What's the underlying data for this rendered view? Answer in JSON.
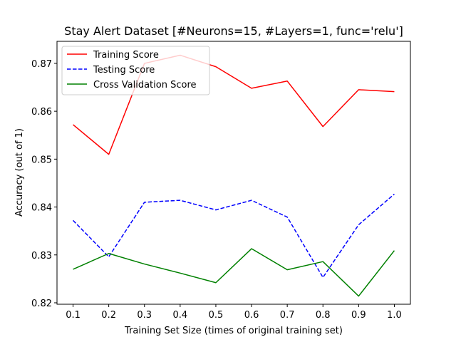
{
  "chart_data": {
    "type": "line",
    "title": "Stay Alert Dataset [#Neurons=15, #Layers=1, func='relu']",
    "xlabel": "Training Set Size (times of original training set)",
    "ylabel": "Accuracy (out of 1)",
    "x": [
      0.1,
      0.2,
      0.3,
      0.4,
      0.5,
      0.6,
      0.7,
      0.8,
      0.9,
      1.0
    ],
    "xticks": [
      "0.1",
      "0.2",
      "0.3",
      "0.4",
      "0.5",
      "0.6",
      "0.7",
      "0.8",
      "0.9",
      "1.0"
    ],
    "yticks": [
      "0.82",
      "0.83",
      "0.84",
      "0.85",
      "0.86",
      "0.87"
    ],
    "xlim": [
      0.055,
      1.045
    ],
    "ylim": [
      0.8197,
      0.8746
    ],
    "legend_position": "top-left",
    "grid": false,
    "series": [
      {
        "name": "Training Score",
        "color": "#ff0000",
        "dash": "solid",
        "values": [
          0.8572,
          0.851,
          0.87,
          0.8717,
          0.8693,
          0.8648,
          0.8663,
          0.8568,
          0.8645,
          0.8641
        ]
      },
      {
        "name": "Testing Score",
        "color": "#0000ff",
        "dash": "dashed",
        "values": [
          0.8372,
          0.8296,
          0.841,
          0.8414,
          0.8394,
          0.8414,
          0.8379,
          0.8253,
          0.8363,
          0.8427
        ]
      },
      {
        "name": "Cross Validation Score",
        "color": "#008000",
        "dash": "solid",
        "values": [
          0.827,
          0.8303,
          0.8281,
          0.8262,
          0.8242,
          0.8313,
          0.8269,
          0.8286,
          0.8214,
          0.8309
        ]
      }
    ]
  }
}
